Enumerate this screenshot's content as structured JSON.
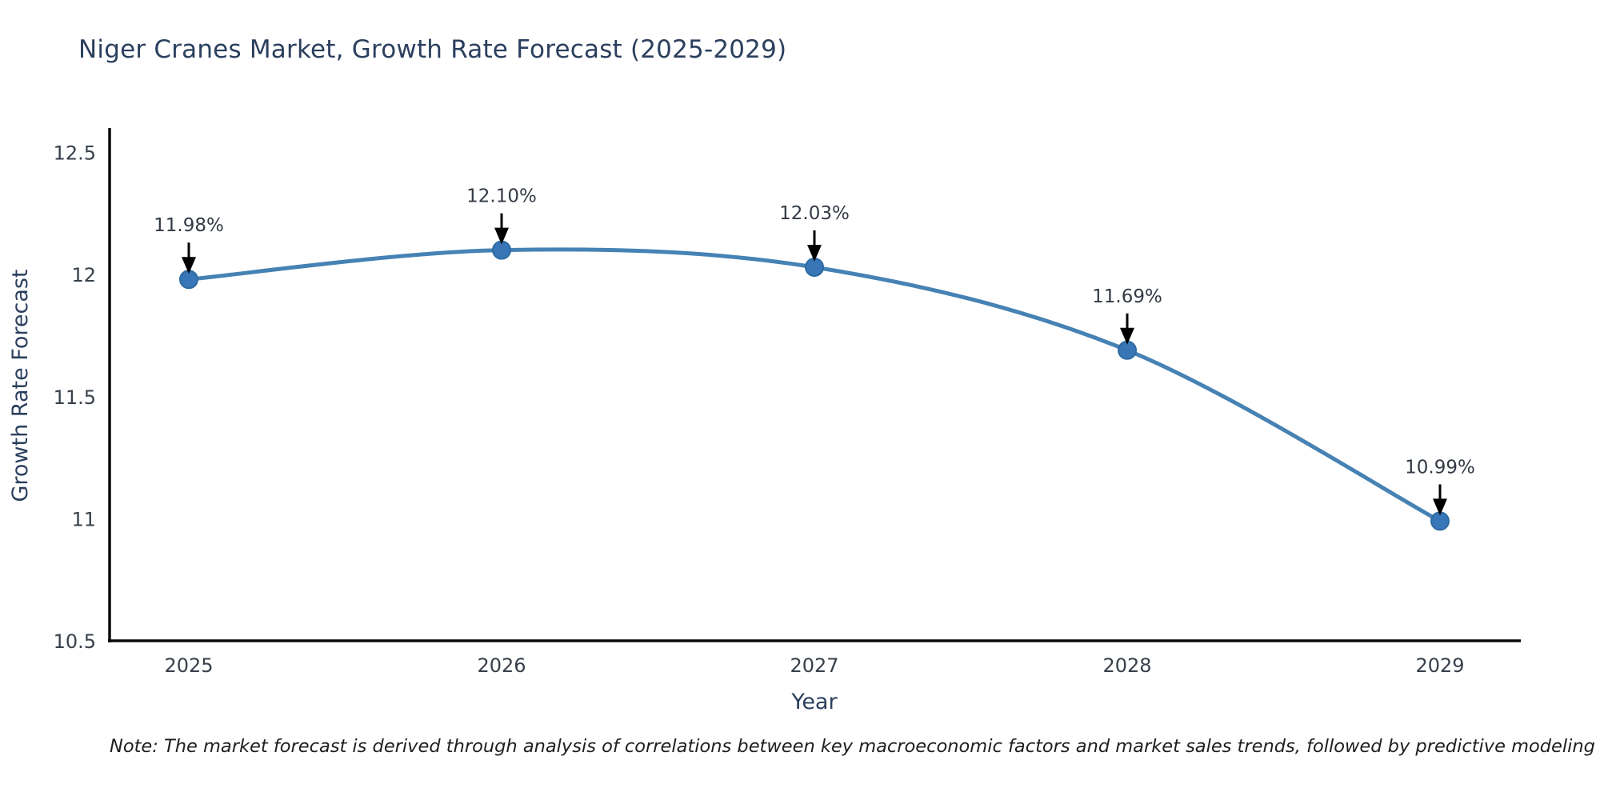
{
  "chart_data": {
    "type": "line",
    "title": "Niger Cranes Market, Growth Rate Forecast (2025-2029)",
    "xlabel": "Year",
    "ylabel": "Growth Rate Forecast",
    "x": [
      2025,
      2026,
      2027,
      2028,
      2029
    ],
    "values": [
      11.98,
      12.1,
      12.03,
      11.69,
      10.99
    ],
    "point_labels": [
      "11.98%",
      "12.10%",
      "12.03%",
      "11.69%",
      "10.99%"
    ],
    "xtick_labels": [
      "2025",
      "2026",
      "2027",
      "2028",
      "2029"
    ],
    "ytick_values": [
      10.5,
      11,
      11.5,
      12,
      12.5
    ],
    "ytick_labels": [
      "10.5",
      "11",
      "11.5",
      "12",
      "12.5"
    ],
    "ylim": [
      10.5,
      12.6
    ],
    "grid": false,
    "legend": "none",
    "line_shape": "spline",
    "note": "Note: The market forecast is derived through analysis of correlations between key macroeconomic factors and market sales trends, followed by predictive modeling to project future sal",
    "colors": {
      "line": "#4682b4",
      "marker_fill": "#3876b8",
      "marker_edge": "#2d6aa0",
      "axis_line": "#0a0a0a",
      "tick_text": "#37404a",
      "title_text": "#2b3f5e",
      "annotation_text": "#333a45",
      "annotation_arrow": "#000000",
      "background": "#ffffff"
    }
  }
}
